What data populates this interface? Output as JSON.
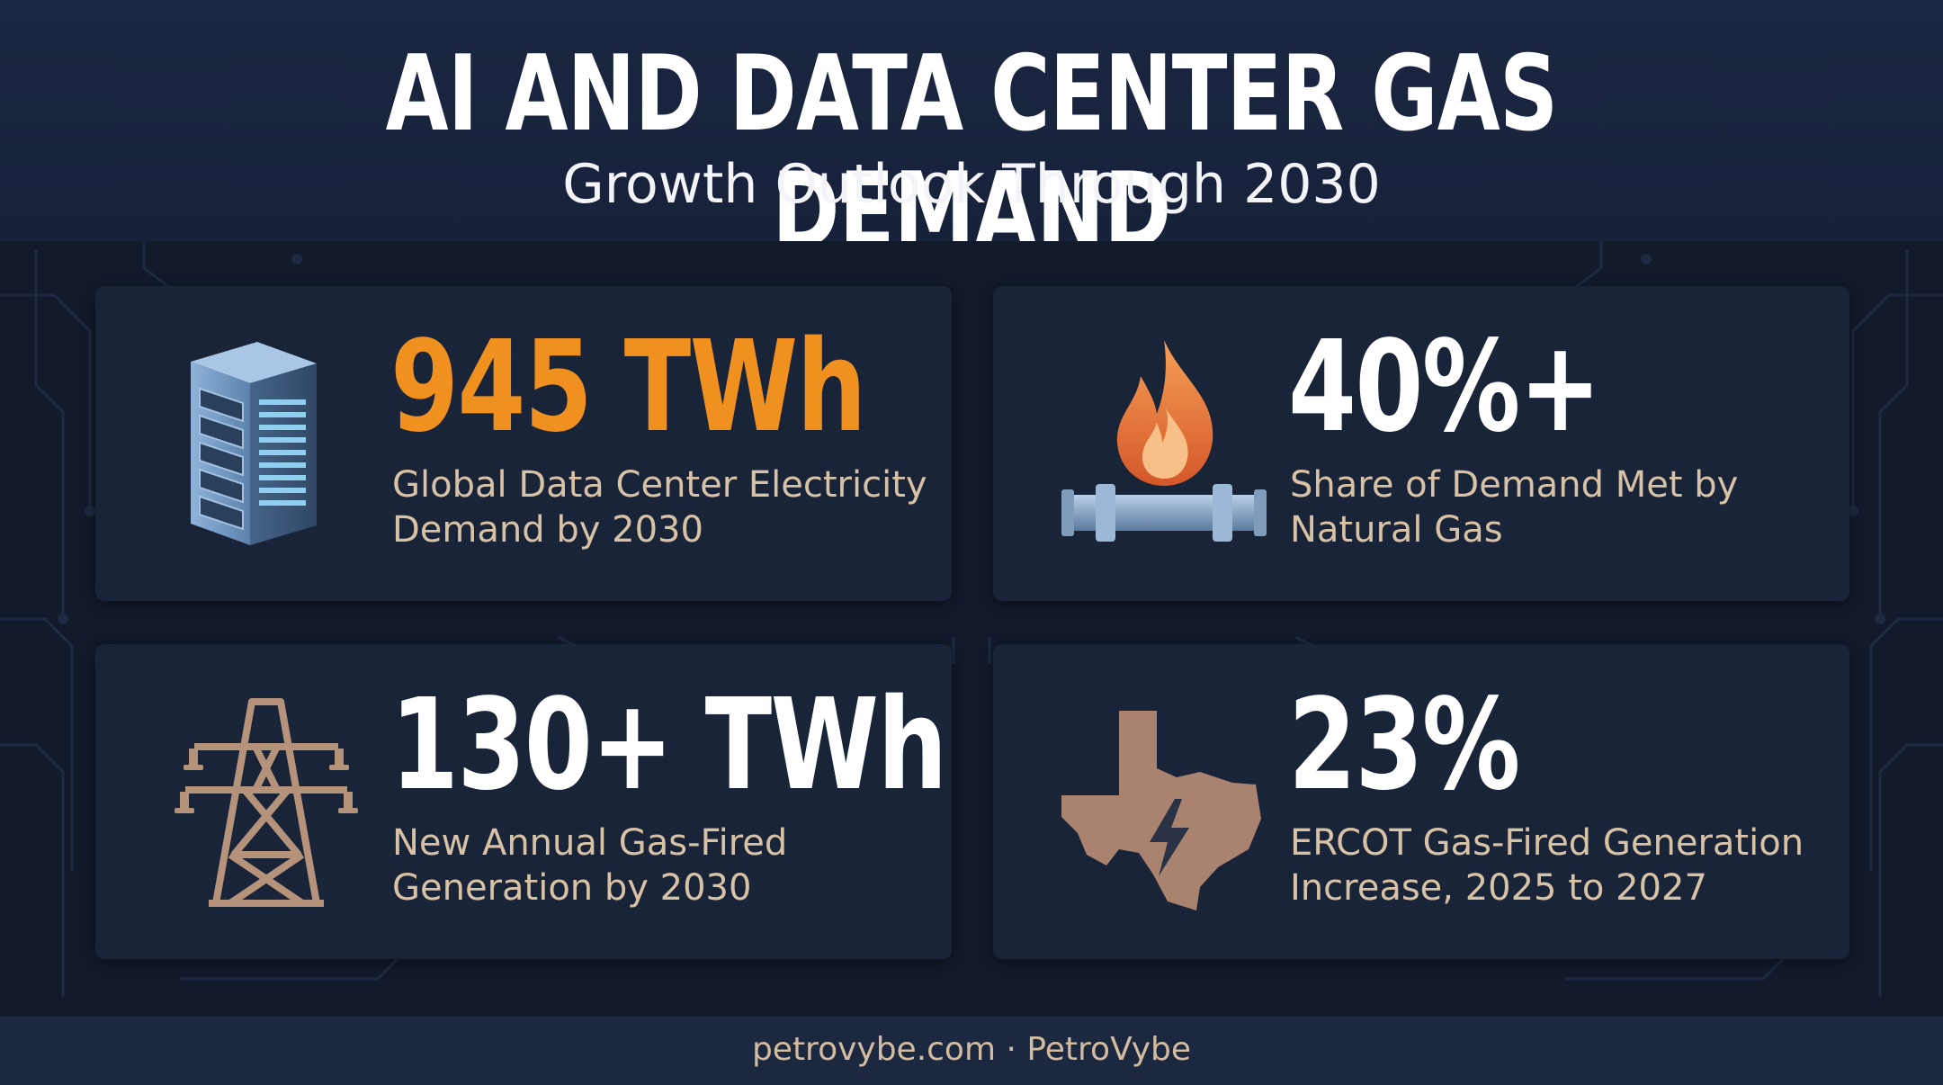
{
  "header": {
    "title": "AI AND DATA CENTER GAS DEMAND",
    "subtitle": "Growth Outlook Through 2030"
  },
  "cards": [
    {
      "value": "945 TWh",
      "label": "Global Data Center Electricity Demand by 2030",
      "icon": "server-rack-icon",
      "value_color": "#f0901e"
    },
    {
      "value": "40%+",
      "label": "Share of Demand Met by Natural Gas",
      "icon": "gas-flame-pipeline-icon",
      "value_color": "#ffffff"
    },
    {
      "value": "130+ TWh",
      "label": "New Annual Gas-Fired Generation by 2030",
      "icon": "transmission-tower-icon",
      "value_color": "#ffffff"
    },
    {
      "value": "23%",
      "label": "ERCOT Gas-Fired Generation Increase, 2025 to 2027",
      "icon": "texas-lightning-icon",
      "value_color": "#ffffff"
    }
  ],
  "footer": {
    "text": "petrovybe.com · PetroVybe"
  },
  "colors": {
    "background": "#141d30",
    "card": "#1a2438",
    "accent_orange": "#f0901e",
    "label_tan": "#d7c2a6"
  }
}
